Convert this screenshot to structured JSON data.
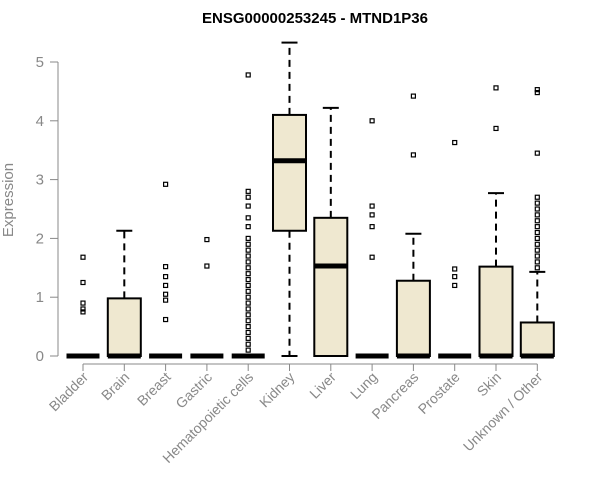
{
  "chart_data": {
    "type": "boxplot",
    "title": "ENSG00000253245 - MTND1P36",
    "xlabel": "",
    "ylabel": "Expression",
    "ylim": [
      0,
      5.35
    ],
    "yticks": [
      0,
      1,
      2,
      3,
      4,
      5
    ],
    "box_fill": "#efe8d0",
    "box_stroke": "#000000",
    "categories": [
      "Bladder",
      "Brain",
      "Breast",
      "Gastric",
      "Hematopoietic cells",
      "Kidney",
      "Liver",
      "Lung",
      "Pancreas",
      "Prostate",
      "Skin",
      "Unknown / Other"
    ],
    "boxes": [
      {
        "q1": 0,
        "median": 0,
        "q3": 0,
        "whisker_low": 0,
        "whisker_high": 0,
        "outliers": [
          0.75,
          0.8,
          0.9,
          1.25,
          1.68
        ]
      },
      {
        "q1": 0,
        "median": 0,
        "q3": 0.98,
        "whisker_low": 0,
        "whisker_high": 2.13,
        "outliers": []
      },
      {
        "q1": 0,
        "median": 0,
        "q3": 0,
        "whisker_low": 0,
        "whisker_high": 0,
        "outliers": [
          0.62,
          0.95,
          1.05,
          1.2,
          1.35,
          1.52,
          2.92
        ]
      },
      {
        "q1": 0,
        "median": 0,
        "q3": 0,
        "whisker_low": 0,
        "whisker_high": 0,
        "outliers": [
          1.53,
          1.98
        ]
      },
      {
        "q1": 0,
        "median": 0,
        "q3": 0,
        "whisker_low": 0,
        "whisker_high": 0,
        "outliers": [
          0.1,
          0.2,
          0.3,
          0.4,
          0.5,
          0.6,
          0.7,
          0.8,
          0.9,
          1.0,
          1.1,
          1.2,
          1.3,
          1.4,
          1.5,
          1.6,
          1.7,
          1.8,
          1.9,
          2.0,
          2.2,
          2.35,
          2.55,
          2.7,
          2.8,
          4.78
        ]
      },
      {
        "q1": 2.13,
        "median": 3.32,
        "q3": 4.1,
        "whisker_low": 0,
        "whisker_high": 5.33,
        "outliers": []
      },
      {
        "q1": 0,
        "median": 1.53,
        "q3": 2.35,
        "whisker_low": 0,
        "whisker_high": 4.22,
        "outliers": []
      },
      {
        "q1": 0,
        "median": 0,
        "q3": 0,
        "whisker_low": 0,
        "whisker_high": 0,
        "outliers": [
          1.68,
          2.2,
          2.4,
          2.55,
          4.0
        ]
      },
      {
        "q1": 0,
        "median": 0,
        "q3": 1.28,
        "whisker_low": 0,
        "whisker_high": 2.08,
        "outliers": [
          3.42,
          4.42
        ]
      },
      {
        "q1": 0,
        "median": 0,
        "q3": 0,
        "whisker_low": 0,
        "whisker_high": 0,
        "outliers": [
          1.2,
          1.35,
          1.48,
          3.63
        ]
      },
      {
        "q1": 0,
        "median": 0,
        "q3": 1.52,
        "whisker_low": 0,
        "whisker_high": 2.77,
        "outliers": [
          3.87,
          4.56
        ]
      },
      {
        "q1": 0,
        "median": 0,
        "q3": 0.57,
        "whisker_low": 0,
        "whisker_high": 1.43,
        "outliers": [
          1.5,
          1.6,
          1.7,
          1.8,
          1.9,
          2.0,
          2.1,
          2.2,
          2.3,
          2.4,
          2.5,
          2.6,
          2.7,
          3.45,
          4.48,
          4.53
        ]
      }
    ]
  }
}
